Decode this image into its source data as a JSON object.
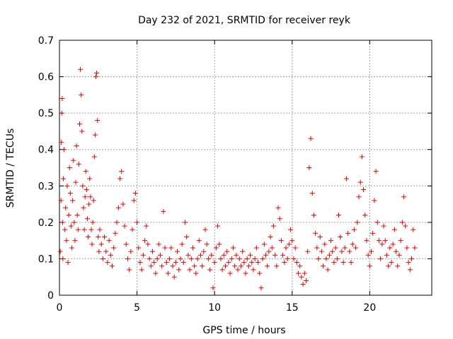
{
  "chart_data": {
    "type": "scatter",
    "title": "Day 232 of 2021, SRMTID for receiver reyk",
    "xlabel": "GPS time / hours",
    "ylabel": "SRMTID / TECUs",
    "xlim": [
      0,
      24
    ],
    "ylim": [
      0,
      0.7
    ],
    "xticks": [
      0,
      5,
      10,
      15,
      20
    ],
    "yticks": [
      0,
      0.1,
      0.2,
      0.3,
      0.4,
      0.5,
      0.6,
      0.7
    ],
    "xtick_labels": [
      "0",
      "5",
      "10",
      "15",
      "20"
    ],
    "ytick_labels": [
      "0",
      "0.1",
      "0.2",
      "0.3",
      "0.4",
      "0.5",
      "0.6",
      "0.7"
    ],
    "grid": true,
    "marker": "+",
    "color": "#e00000",
    "series": [
      {
        "name": "SRMTID",
        "points": [
          [
            0.05,
            0.12
          ],
          [
            0.1,
            0.26
          ],
          [
            0.12,
            0.42
          ],
          [
            0.15,
            0.5
          ],
          [
            0.18,
            0.54
          ],
          [
            0.2,
            0.2
          ],
          [
            0.22,
            0.1
          ],
          [
            0.25,
            0.32
          ],
          [
            0.3,
            0.4
          ],
          [
            0.35,
            0.18
          ],
          [
            0.4,
            0.24
          ],
          [
            0.45,
            0.15
          ],
          [
            0.5,
            0.3
          ],
          [
            0.55,
            0.09
          ],
          [
            0.6,
            0.22
          ],
          [
            0.65,
            0.35
          ],
          [
            0.7,
            0.28
          ],
          [
            0.75,
            0.19
          ],
          [
            0.8,
            0.13
          ],
          [
            0.85,
            0.26
          ],
          [
            0.9,
            0.37
          ],
          [
            0.95,
            0.2
          ],
          [
            1.0,
            0.15
          ],
          [
            1.05,
            0.31
          ],
          [
            1.1,
            0.41
          ],
          [
            1.15,
            0.22
          ],
          [
            1.2,
            0.18
          ],
          [
            1.25,
            0.36
          ],
          [
            1.3,
            0.47
          ],
          [
            1.35,
            0.62
          ],
          [
            1.4,
            0.55
          ],
          [
            1.45,
            0.45
          ],
          [
            1.5,
            0.3
          ],
          [
            1.55,
            0.24
          ],
          [
            1.6,
            0.18
          ],
          [
            1.65,
            0.27
          ],
          [
            1.7,
            0.34
          ],
          [
            1.75,
            0.29
          ],
          [
            1.8,
            0.21
          ],
          [
            1.85,
            0.16
          ],
          [
            1.9,
            0.25
          ],
          [
            1.95,
            0.32
          ],
          [
            2.0,
            0.27
          ],
          [
            2.05,
            0.18
          ],
          [
            2.1,
            0.14
          ],
          [
            2.15,
            0.2
          ],
          [
            2.2,
            0.26
          ],
          [
            2.25,
            0.38
          ],
          [
            2.3,
            0.44
          ],
          [
            2.35,
            0.6
          ],
          [
            2.4,
            0.61
          ],
          [
            2.45,
            0.48
          ],
          [
            2.5,
            0.16
          ],
          [
            2.55,
            0.12
          ],
          [
            2.6,
            0.18
          ],
          [
            2.7,
            0.14
          ],
          [
            2.8,
            0.1
          ],
          [
            2.9,
            0.16
          ],
          [
            3.0,
            0.12
          ],
          [
            3.1,
            0.09
          ],
          [
            3.2,
            0.15
          ],
          [
            3.3,
            0.11
          ],
          [
            3.4,
            0.08
          ],
          [
            3.5,
            0.13
          ],
          [
            3.6,
            0.17
          ],
          [
            3.7,
            0.2
          ],
          [
            3.8,
            0.24
          ],
          [
            3.9,
            0.32
          ],
          [
            4.0,
            0.34
          ],
          [
            4.1,
            0.25
          ],
          [
            4.2,
            0.19
          ],
          [
            4.3,
            0.14
          ],
          [
            4.4,
            0.1
          ],
          [
            4.5,
            0.07
          ],
          [
            4.6,
            0.12
          ],
          [
            4.7,
            0.18
          ],
          [
            4.8,
            0.26
          ],
          [
            4.9,
            0.28
          ],
          [
            5.0,
            0.2
          ],
          [
            5.1,
            0.13
          ],
          [
            5.2,
            0.09
          ],
          [
            5.3,
            0.07
          ],
          [
            5.4,
            0.11
          ],
          [
            5.5,
            0.15
          ],
          [
            5.6,
            0.19
          ],
          [
            5.7,
            0.14
          ],
          [
            5.8,
            0.1
          ],
          [
            5.9,
            0.08
          ],
          [
            6.0,
            0.12
          ],
          [
            6.1,
            0.09
          ],
          [
            6.2,
            0.06
          ],
          [
            6.3,
            0.1
          ],
          [
            6.4,
            0.14
          ],
          [
            6.5,
            0.11
          ],
          [
            6.6,
            0.08
          ],
          [
            6.7,
            0.23
          ],
          [
            6.8,
            0.13
          ],
          [
            6.9,
            0.09
          ],
          [
            7.0,
            0.06
          ],
          [
            7.1,
            0.1
          ],
          [
            7.2,
            0.13
          ],
          [
            7.3,
            0.08
          ],
          [
            7.4,
            0.05
          ],
          [
            7.5,
            0.09
          ],
          [
            7.6,
            0.12
          ],
          [
            7.7,
            0.07
          ],
          [
            7.8,
            0.1
          ],
          [
            7.9,
            0.14
          ],
          [
            8.0,
            0.09
          ],
          [
            8.1,
            0.2
          ],
          [
            8.2,
            0.16
          ],
          [
            8.3,
            0.11
          ],
          [
            8.4,
            0.07
          ],
          [
            8.5,
            0.1
          ],
          [
            8.6,
            0.13
          ],
          [
            8.7,
            0.08
          ],
          [
            8.8,
            0.06
          ],
          [
            8.9,
            0.1
          ],
          [
            9.0,
            0.15
          ],
          [
            9.1,
            0.11
          ],
          [
            9.2,
            0.08
          ],
          [
            9.3,
            0.12
          ],
          [
            9.4,
            0.18
          ],
          [
            9.5,
            0.14
          ],
          [
            9.6,
            0.1
          ],
          [
            9.7,
            0.07
          ],
          [
            9.8,
            0.11
          ],
          [
            9.9,
            0.02
          ],
          [
            10.0,
            0.09
          ],
          [
            10.1,
            0.13
          ],
          [
            10.2,
            0.19
          ],
          [
            10.3,
            0.14
          ],
          [
            10.4,
            0.1
          ],
          [
            10.5,
            0.07
          ],
          [
            10.6,
            0.11
          ],
          [
            10.7,
            0.08
          ],
          [
            10.8,
            0.12
          ],
          [
            10.9,
            0.09
          ],
          [
            11.0,
            0.06
          ],
          [
            11.1,
            0.1
          ],
          [
            11.2,
            0.13
          ],
          [
            11.3,
            0.08
          ],
          [
            11.4,
            0.11
          ],
          [
            11.5,
            0.07
          ],
          [
            11.6,
            0.1
          ],
          [
            11.7,
            0.08
          ],
          [
            11.8,
            0.12
          ],
          [
            11.9,
            0.09
          ],
          [
            12.0,
            0.06
          ],
          [
            12.1,
            0.1
          ],
          [
            12.2,
            0.08
          ],
          [
            12.3,
            0.11
          ],
          [
            12.4,
            0.09
          ],
          [
            12.5,
            0.07
          ],
          [
            12.6,
            0.1
          ],
          [
            12.7,
            0.13
          ],
          [
            12.8,
            0.09
          ],
          [
            12.9,
            0.06
          ],
          [
            13.0,
            0.02
          ],
          [
            13.1,
            0.1
          ],
          [
            13.2,
            0.14
          ],
          [
            13.3,
            0.11
          ],
          [
            13.4,
            0.08
          ],
          [
            13.5,
            0.12
          ],
          [
            13.6,
            0.16
          ],
          [
            13.7,
            0.13
          ],
          [
            13.8,
            0.19
          ],
          [
            13.9,
            0.11
          ],
          [
            14.0,
            0.08
          ],
          [
            14.1,
            0.24
          ],
          [
            14.2,
            0.21
          ],
          [
            14.3,
            0.15
          ],
          [
            14.4,
            0.11
          ],
          [
            14.5,
            0.09
          ],
          [
            14.6,
            0.13
          ],
          [
            14.7,
            0.1
          ],
          [
            14.8,
            0.14
          ],
          [
            14.9,
            0.18
          ],
          [
            15.0,
            0.15
          ],
          [
            15.1,
            0.1
          ],
          [
            15.2,
            0.13
          ],
          [
            15.3,
            0.09
          ],
          [
            15.4,
            0.06
          ],
          [
            15.5,
            0.08
          ],
          [
            15.6,
            0.05
          ],
          [
            15.7,
            0.03
          ],
          [
            15.8,
            0.06
          ],
          [
            15.9,
            0.04
          ],
          [
            16.0,
            0.12
          ],
          [
            16.1,
            0.35
          ],
          [
            16.2,
            0.43
          ],
          [
            16.3,
            0.28
          ],
          [
            16.4,
            0.22
          ],
          [
            16.5,
            0.17
          ],
          [
            16.6,
            0.13
          ],
          [
            16.7,
            0.1
          ],
          [
            16.8,
            0.16
          ],
          [
            16.9,
            0.12
          ],
          [
            17.0,
            0.08
          ],
          [
            17.1,
            0.14
          ],
          [
            17.2,
            0.1
          ],
          [
            17.3,
            0.07
          ],
          [
            17.4,
            0.11
          ],
          [
            17.5,
            0.15
          ],
          [
            17.6,
            0.12
          ],
          [
            17.7,
            0.09
          ],
          [
            17.8,
            0.13
          ],
          [
            17.9,
            0.1
          ],
          [
            18.0,
            0.22
          ],
          [
            18.1,
            0.16
          ],
          [
            18.2,
            0.12
          ],
          [
            18.3,
            0.09
          ],
          [
            18.4,
            0.13
          ],
          [
            18.5,
            0.32
          ],
          [
            18.6,
            0.17
          ],
          [
            18.7,
            0.12
          ],
          [
            18.8,
            0.09
          ],
          [
            18.9,
            0.14
          ],
          [
            19.0,
            0.18
          ],
          [
            19.1,
            0.13
          ],
          [
            19.2,
            0.2
          ],
          [
            19.3,
            0.27
          ],
          [
            19.4,
            0.31
          ],
          [
            19.5,
            0.38
          ],
          [
            19.6,
            0.29
          ],
          [
            19.7,
            0.22
          ],
          [
            19.8,
            0.15
          ],
          [
            19.9,
            0.11
          ],
          [
            20.0,
            0.08
          ],
          [
            20.1,
            0.12
          ],
          [
            20.2,
            0.17
          ],
          [
            20.3,
            0.26
          ],
          [
            20.4,
            0.34
          ],
          [
            20.5,
            0.2
          ],
          [
            20.6,
            0.15
          ],
          [
            20.7,
            0.1
          ],
          [
            20.8,
            0.14
          ],
          [
            20.9,
            0.19
          ],
          [
            21.0,
            0.15
          ],
          [
            21.1,
            0.11
          ],
          [
            21.2,
            0.08
          ],
          [
            21.3,
            0.13
          ],
          [
            21.4,
            0.09
          ],
          [
            21.5,
            0.14
          ],
          [
            21.6,
            0.18
          ],
          [
            21.7,
            0.12
          ],
          [
            21.8,
            0.08
          ],
          [
            21.9,
            0.11
          ],
          [
            22.0,
            0.15
          ],
          [
            22.1,
            0.2
          ],
          [
            22.2,
            0.27
          ],
          [
            22.3,
            0.19
          ],
          [
            22.4,
            0.13
          ],
          [
            22.5,
            0.09
          ],
          [
            22.6,
            0.07
          ],
          [
            22.7,
            0.1
          ],
          [
            22.8,
            0.18
          ],
          [
            22.9,
            0.13
          ]
        ]
      }
    ]
  }
}
